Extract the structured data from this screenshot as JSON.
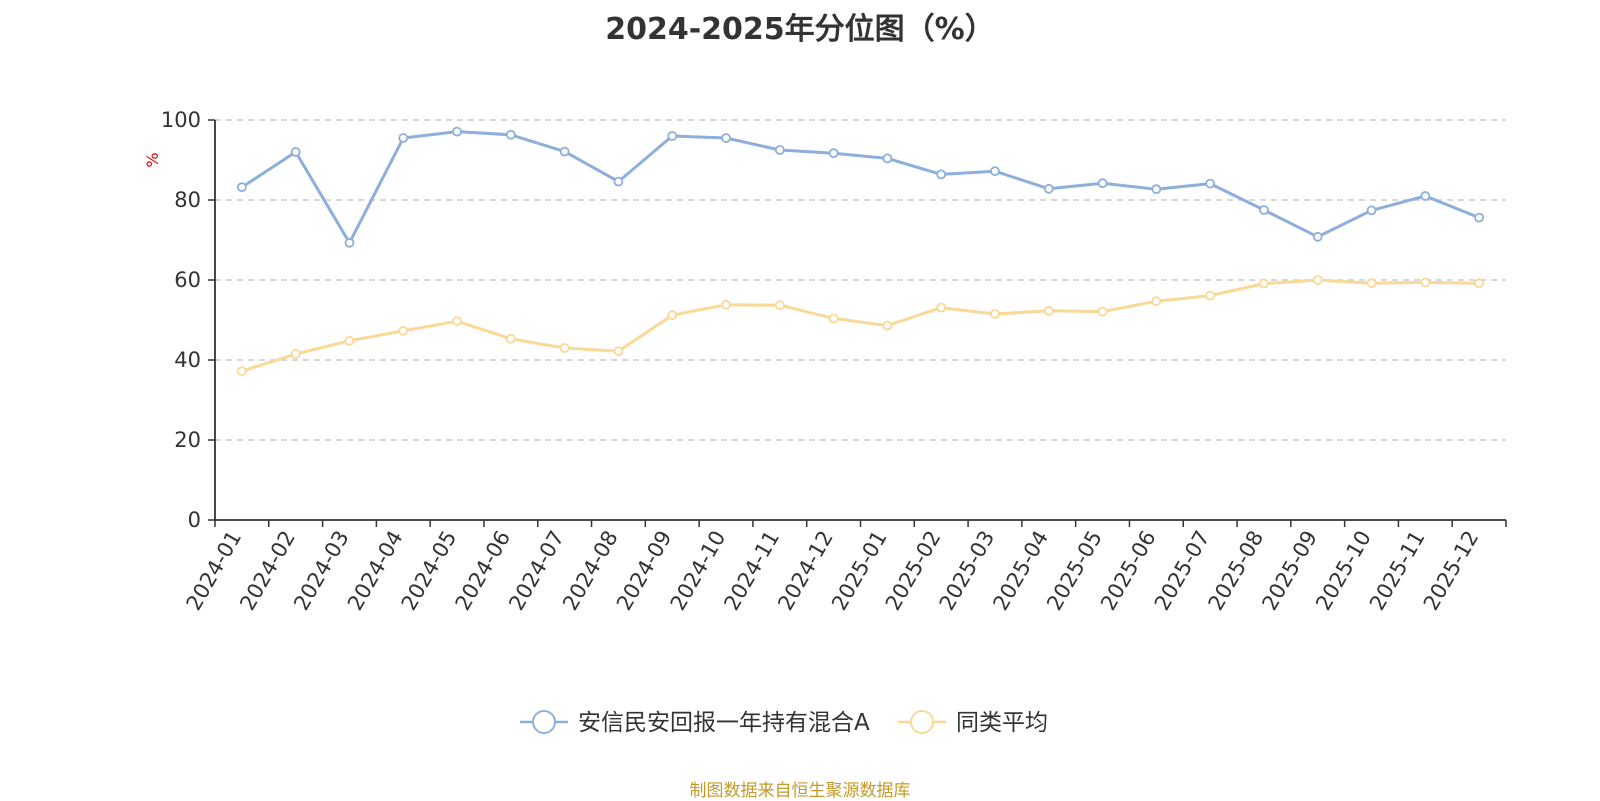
{
  "title": "2024-2025年分位图（%）",
  "source_note": "制图数据来自恒生聚源数据库",
  "colors": {
    "series1": "#8eaedb",
    "series2": "#fad896",
    "grid": "#cccccc",
    "axis": "#333333"
  },
  "chart_data": {
    "type": "line",
    "ylabel": "%",
    "ylim": [
      0,
      100
    ],
    "yticks": [
      0,
      20,
      40,
      60,
      80,
      100
    ],
    "grid": true,
    "legend": "bottom-center",
    "categories": [
      "2024-01",
      "2024-02",
      "2024-03",
      "2024-04",
      "2024-05",
      "2024-06",
      "2024-07",
      "2024-08",
      "2024-09",
      "2024-10",
      "2024-11",
      "2024-12",
      "2025-01",
      "2025-02",
      "2025-03",
      "2025-04",
      "2025-05",
      "2025-06",
      "2025-07",
      "2025-08",
      "2025-09",
      "2025-10",
      "2025-11",
      "2025-12"
    ],
    "series": [
      {
        "name": "安信民安回报一年持有混合A",
        "values": [
          83.2,
          92.0,
          69.3,
          95.5,
          97.1,
          96.3,
          92.1,
          84.6,
          96.0,
          95.5,
          92.5,
          91.7,
          90.4,
          86.4,
          87.2,
          82.8,
          84.2,
          82.7,
          84.1,
          77.5,
          70.8,
          77.4,
          81.0,
          75.6
        ]
      },
      {
        "name": "同类平均",
        "values": [
          37.2,
          41.5,
          44.8,
          47.3,
          49.7,
          45.3,
          43.0,
          42.2,
          51.2,
          53.8,
          53.7,
          50.4,
          48.6,
          53.1,
          51.5,
          52.3,
          52.1,
          54.7,
          56.1,
          59.1,
          60.0,
          59.2,
          59.4,
          59.2
        ]
      }
    ]
  }
}
